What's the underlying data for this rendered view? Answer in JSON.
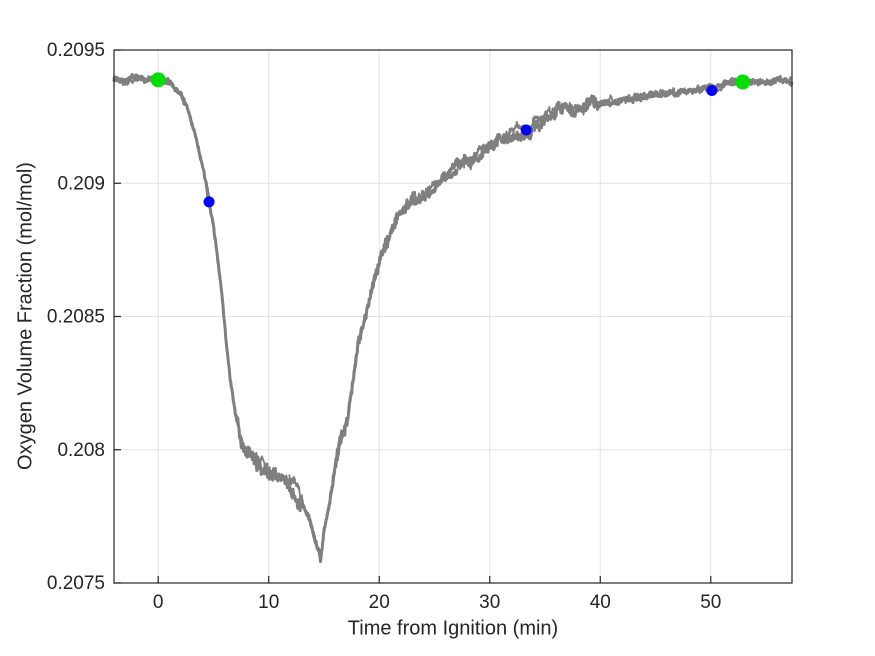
{
  "figure": {
    "background": "#ffffff"
  },
  "chart_data": {
    "type": "line",
    "title": "",
    "xlabel": "Time from Ignition (min)",
    "ylabel": "Oxygen Volume Fraction (mol/mol)",
    "xlim": [
      -4,
      57.35
    ],
    "ylim": [
      0.2075,
      0.2095
    ],
    "xticks": [
      0,
      10,
      20,
      30,
      40,
      50
    ],
    "xtick_labels": [
      "0",
      "10",
      "20",
      "30",
      "40",
      "50"
    ],
    "yticks": [
      0.2075,
      0.208,
      0.2085,
      0.209,
      0.2095
    ],
    "ytick_labels": [
      "0.2075",
      "0.208",
      "0.2085",
      "0.209",
      "0.2095"
    ],
    "grid": true,
    "axis_color": "#252525",
    "grid_color": "#e2e2e2",
    "text_color": "#252525",
    "series": [
      {
        "name": "oxygen-volume-fraction-trace",
        "color": "#7f7f7f",
        "style": "noisy-line",
        "points": [
          [
            -4.0,
            0.209395
          ],
          [
            -3.0,
            0.209395
          ],
          [
            -2.0,
            0.209392
          ],
          [
            -1.0,
            0.20939
          ],
          [
            0.0,
            0.209388
          ],
          [
            0.5,
            0.209385
          ],
          [
            1.0,
            0.209372
          ],
          [
            1.5,
            0.209355
          ],
          [
            2.0,
            0.209338
          ],
          [
            2.5,
            0.209295
          ],
          [
            3.0,
            0.209233
          ],
          [
            3.5,
            0.209152
          ],
          [
            4.0,
            0.209063
          ],
          [
            4.6,
            0.20893
          ],
          [
            5.0,
            0.208845
          ],
          [
            5.5,
            0.20869
          ],
          [
            6.0,
            0.20848
          ],
          [
            6.5,
            0.208262
          ],
          [
            7.0,
            0.20812
          ],
          [
            7.5,
            0.208045
          ],
          [
            8.0,
            0.208005
          ],
          [
            8.5,
            0.20797
          ],
          [
            9.0,
            0.20794
          ],
          [
            9.5,
            0.20792
          ],
          [
            10.0,
            0.207905
          ],
          [
            10.5,
            0.207915
          ],
          [
            11.0,
            0.2079
          ],
          [
            11.5,
            0.20788
          ],
          [
            12.0,
            0.207862
          ],
          [
            12.5,
            0.20784
          ],
          [
            13.0,
            0.2078
          ],
          [
            13.5,
            0.207752
          ],
          [
            14.0,
            0.20769
          ],
          [
            14.4,
            0.20763
          ],
          [
            14.7,
            0.207578
          ],
          [
            15.0,
            0.20769
          ],
          [
            15.5,
            0.2078
          ],
          [
            16.0,
            0.20792
          ],
          [
            16.5,
            0.20804
          ],
          [
            17.0,
            0.208115
          ],
          [
            17.5,
            0.20822
          ],
          [
            18.0,
            0.20836
          ],
          [
            18.5,
            0.208465
          ],
          [
            19.0,
            0.20856
          ],
          [
            19.5,
            0.208655
          ],
          [
            20.0,
            0.20871
          ],
          [
            20.5,
            0.20877
          ],
          [
            21.0,
            0.20882
          ],
          [
            21.5,
            0.20886
          ],
          [
            22.0,
            0.208895
          ],
          [
            22.5,
            0.20892
          ],
          [
            23.0,
            0.20893
          ],
          [
            23.5,
            0.20894
          ],
          [
            24.0,
            0.208958
          ],
          [
            25.0,
            0.20899
          ],
          [
            26.0,
            0.209028
          ],
          [
            27.0,
            0.20906
          ],
          [
            28.0,
            0.209098
          ],
          [
            29.0,
            0.20912
          ],
          [
            30.0,
            0.209138
          ],
          [
            31.0,
            0.209165
          ],
          [
            32.0,
            0.20918
          ],
          [
            33.3,
            0.2092
          ],
          [
            34.0,
            0.20922
          ],
          [
            35.0,
            0.209248
          ],
          [
            36.0,
            0.209262
          ],
          [
            37.0,
            0.209278
          ],
          [
            38.0,
            0.209288
          ],
          [
            39.0,
            0.209292
          ],
          [
            40.0,
            0.2093
          ],
          [
            41.0,
            0.209308
          ],
          [
            42.0,
            0.209315
          ],
          [
            43.0,
            0.209325
          ],
          [
            44.0,
            0.20933
          ],
          [
            45.0,
            0.209338
          ],
          [
            46.0,
            0.20934
          ],
          [
            47.0,
            0.209345
          ],
          [
            48.0,
            0.209348
          ],
          [
            49.0,
            0.209355
          ],
          [
            50.0,
            0.20935
          ],
          [
            50.6,
            0.20936
          ],
          [
            51.2,
            0.209372
          ],
          [
            52.0,
            0.209378
          ],
          [
            53.0,
            0.209382
          ],
          [
            54.0,
            0.209383
          ],
          [
            55.0,
            0.209382
          ],
          [
            56.0,
            0.209384
          ],
          [
            57.35,
            0.209383
          ]
        ],
        "noise_regions": [
          [
            -4,
            1,
            1e-05
          ],
          [
            1,
            7,
            1.2e-05
          ],
          [
            7,
            13,
            2.6e-05
          ],
          [
            13,
            16,
            1.6e-05
          ],
          [
            16,
            21,
            2.2e-05
          ],
          [
            21,
            40,
            2e-05
          ],
          [
            40,
            50,
            1.3e-05
          ],
          [
            50,
            57.35,
            1e-05
          ]
        ]
      }
    ],
    "markers": [
      {
        "name": "green-event-markers",
        "color": "#00dd00",
        "size": 15,
        "points": [
          [
            0,
            0.209388
          ],
          [
            52.9,
            0.20938
          ]
        ]
      },
      {
        "name": "blue-event-markers",
        "color": "#0000ff",
        "size": 11,
        "points": [
          [
            4.6,
            0.20893
          ],
          [
            33.3,
            0.2092
          ],
          [
            50.1,
            0.209348
          ]
        ]
      }
    ],
    "legend": null
  }
}
